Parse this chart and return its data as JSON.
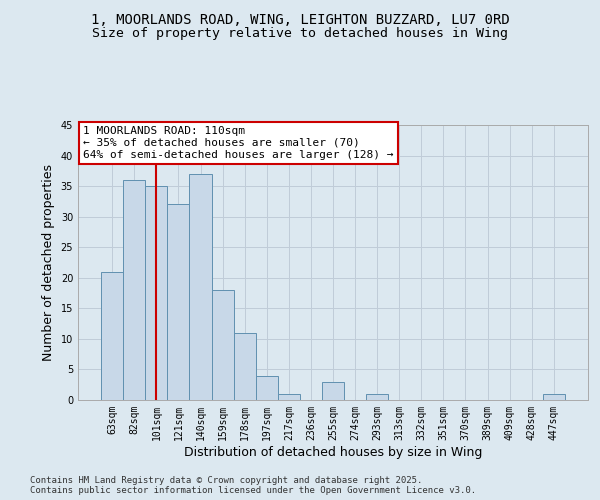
{
  "title_line1": "1, MOORLANDS ROAD, WING, LEIGHTON BUZZARD, LU7 0RD",
  "title_line2": "Size of property relative to detached houses in Wing",
  "xlabel": "Distribution of detached houses by size in Wing",
  "ylabel": "Number of detached properties",
  "categories": [
    "63sqm",
    "82sqm",
    "101sqm",
    "121sqm",
    "140sqm",
    "159sqm",
    "178sqm",
    "197sqm",
    "217sqm",
    "236sqm",
    "255sqm",
    "274sqm",
    "293sqm",
    "313sqm",
    "332sqm",
    "351sqm",
    "370sqm",
    "389sqm",
    "409sqm",
    "428sqm",
    "447sqm"
  ],
  "values": [
    21,
    36,
    35,
    32,
    37,
    18,
    11,
    4,
    1,
    0,
    3,
    0,
    1,
    0,
    0,
    0,
    0,
    0,
    0,
    0,
    1
  ],
  "bar_color": "#c8d8e8",
  "bar_edge_color": "#6090b0",
  "red_line_x": 2.0,
  "annotation_text": "1 MOORLANDS ROAD: 110sqm\n← 35% of detached houses are smaller (70)\n64% of semi-detached houses are larger (128) →",
  "annotation_box_color": "#ffffff",
  "annotation_box_edge": "#cc0000",
  "red_line_color": "#cc0000",
  "grid_color": "#c0ccd8",
  "background_color": "#dce8f0",
  "plot_bg_color": "#dce8f0",
  "ylim": [
    0,
    45
  ],
  "yticks": [
    0,
    5,
    10,
    15,
    20,
    25,
    30,
    35,
    40,
    45
  ],
  "footer": "Contains HM Land Registry data © Crown copyright and database right 2025.\nContains public sector information licensed under the Open Government Licence v3.0.",
  "title_fontsize": 10,
  "subtitle_fontsize": 9.5,
  "tick_fontsize": 7,
  "label_fontsize": 9,
  "footer_fontsize": 6.5
}
